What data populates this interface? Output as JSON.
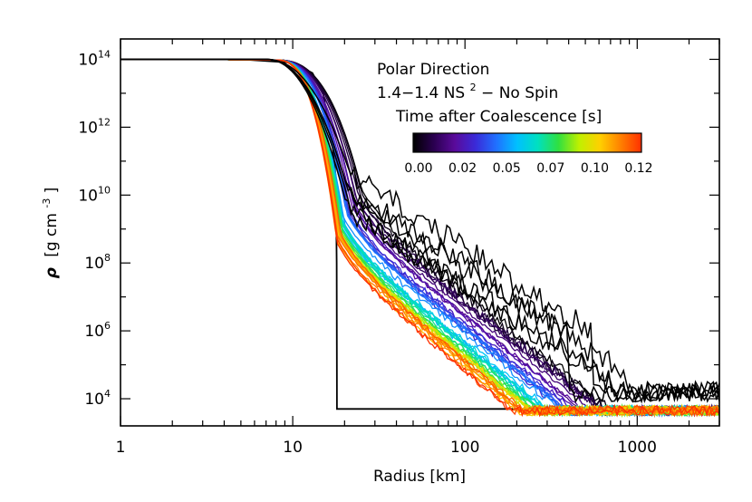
{
  "chart_data": {
    "type": "line",
    "title": "",
    "xlabel": "Radius [km]",
    "ylabel_symbol": "ρ",
    "ylabel_unit_open": "[g cm",
    "ylabel_unit_exp": "-3",
    "ylabel_unit_close": "]",
    "xscale": "log",
    "yscale": "log",
    "xlim": [
      1,
      3000
    ],
    "ylim_log10": [
      3.2,
      14.6
    ],
    "x_ticks": [
      {
        "value": 1,
        "label": "1"
      },
      {
        "value": 10,
        "label": "10"
      },
      {
        "value": 100,
        "label": "100"
      },
      {
        "value": 1000,
        "label": "1000"
      }
    ],
    "y_ticks": [
      {
        "exp": 4,
        "base": "10",
        "sup": "4"
      },
      {
        "exp": 6,
        "base": "10",
        "sup": "6"
      },
      {
        "exp": 8,
        "base": "10",
        "sup": "8"
      },
      {
        "exp": 10,
        "base": "10",
        "sup": "10"
      },
      {
        "exp": 12,
        "base": "10",
        "sup": "12"
      },
      {
        "exp": 14,
        "base": "10",
        "sup": "14"
      }
    ],
    "annotations": {
      "line1": "Polar Direction",
      "line2_main": "1.4−1.4 NS",
      "line2_sup": "2",
      "line2_tail": " − No Spin",
      "colorbar_title": "Time after Coalescence [s]"
    },
    "colorbar": {
      "range": [
        0.0,
        0.125
      ],
      "colors": [
        "#000000",
        "#2a0050",
        "#5a0a9a",
        "#3a2ad8",
        "#2070ff",
        "#00c0ff",
        "#00e0c0",
        "#30e040",
        "#c0f000",
        "#ffd000",
        "#ff8000",
        "#ff3000"
      ],
      "tick_labels": [
        "0.00",
        "0.02",
        "0.05",
        "0.07",
        "0.10",
        "0.12"
      ]
    },
    "series_description": "Density profiles at successive times after coalescence, colored by time",
    "initial_profile": {
      "name": "t = 0.00 s",
      "x": [
        1,
        5,
        10,
        13,
        15,
        16,
        17,
        17.8,
        18,
        18.05,
        3000
      ],
      "log10_rho": [
        14.0,
        14.0,
        13.9,
        13.6,
        13.0,
        12.2,
        11.5,
        10.5,
        8.0,
        3.7,
        3.7
      ]
    },
    "n_series": 44
  }
}
